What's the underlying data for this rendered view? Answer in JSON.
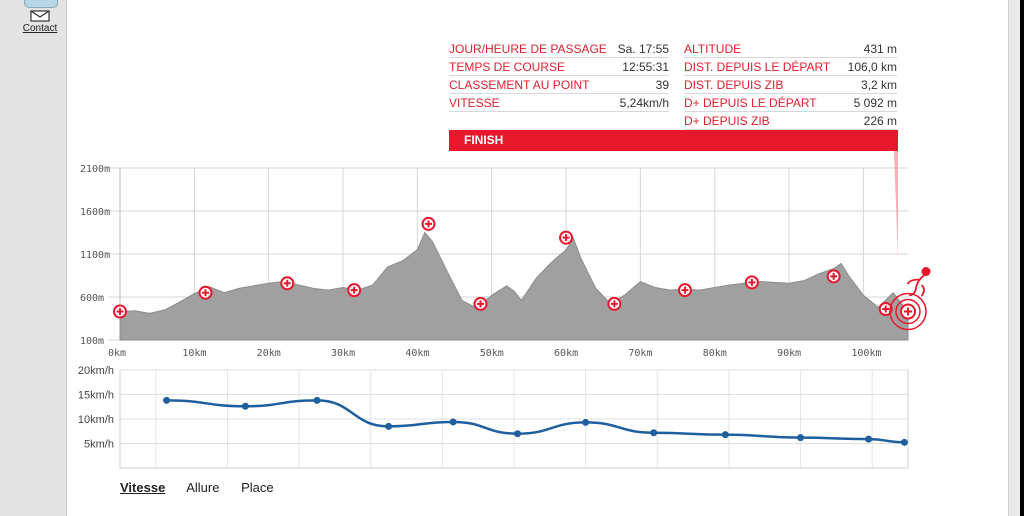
{
  "sidebar": {
    "contact_label": "Contact"
  },
  "info": {
    "left": [
      {
        "label": "JOUR/HEURE DE PASSAGE",
        "value": "Sa. 17:55"
      },
      {
        "label": "TEMPS DE COURSE",
        "value": "12:55:31"
      },
      {
        "label": "CLASSEMENT AU POINT",
        "value": "39"
      },
      {
        "label": "VITESSE",
        "value": "5,24km/h"
      }
    ],
    "right": [
      {
        "label": "ALTITUDE",
        "value": "431 m"
      },
      {
        "label": "DIST. DEPUIS LE DÉPART",
        "value": "106,0 km"
      },
      {
        "label": "DIST. DEPUIS ZIB",
        "value": "3,2 km"
      },
      {
        "label": "D+ DEPUIS LE DÉPART",
        "value": "5 092 m"
      },
      {
        "label": "D+ DEPUIS ZIB",
        "value": "226 m"
      }
    ]
  },
  "finish_label": "FINISH",
  "tabs": [
    "Vitesse",
    "Allure",
    "Place"
  ],
  "active_tab": "Vitesse",
  "colors": {
    "accent": "#e8182c",
    "profile": "#a0a0a0",
    "speed_line": "#1f5fa0"
  },
  "chart_data": [
    {
      "type": "area",
      "title": "",
      "xlabel": "",
      "ylabel": "",
      "x_unit": "km",
      "y_unit": "m",
      "xlim": [
        0,
        106
      ],
      "ylim": [
        100,
        2100
      ],
      "x_ticks": [
        "0km",
        "10km",
        "20km",
        "30km",
        "40km",
        "50km",
        "60km",
        "70km",
        "80km",
        "90km",
        "100km"
      ],
      "y_ticks": [
        "2100m",
        "1600m",
        "1100m",
        "600m",
        "100m"
      ],
      "grid": true,
      "profile": {
        "x": [
          0,
          2,
          4,
          6,
          8,
          10,
          12,
          14,
          16,
          18,
          20,
          22,
          24,
          26,
          28,
          30,
          32,
          34,
          36,
          38,
          40,
          41,
          42,
          44,
          46,
          48,
          50,
          52,
          53,
          54,
          56,
          58,
          60,
          61,
          62,
          64,
          66,
          68,
          70,
          72,
          74,
          76,
          78,
          80,
          82,
          84,
          86,
          88,
          90,
          92,
          94,
          96,
          97,
          98,
          100,
          102,
          104,
          106
        ],
        "y": [
          430,
          440,
          410,
          450,
          540,
          640,
          720,
          650,
          700,
          730,
          760,
          780,
          740,
          700,
          680,
          710,
          680,
          740,
          950,
          1020,
          1150,
          1350,
          1250,
          900,
          560,
          470,
          620,
          730,
          670,
          560,
          820,
          1000,
          1150,
          1280,
          1050,
          700,
          520,
          630,
          780,
          710,
          680,
          690,
          680,
          710,
          740,
          760,
          780,
          770,
          760,
          790,
          870,
          930,
          990,
          850,
          620,
          480,
          650,
          431
        ]
      },
      "aid_stations": {
        "x": [
          0,
          11.5,
          22.5,
          31.5,
          41.5,
          48.5,
          60,
          66.5,
          76,
          85,
          96,
          103
        ],
        "y": [
          431,
          650,
          760,
          680,
          1450,
          520,
          1290,
          520,
          680,
          770,
          840,
          460
        ]
      },
      "current_position": {
        "x": 106,
        "y": 431
      }
    },
    {
      "type": "line",
      "title": "",
      "xlabel": "",
      "ylabel": "",
      "y_unit": "km/h",
      "ylim": [
        0,
        20
      ],
      "y_ticks": [
        "20km/h",
        "15km/h",
        "10km/h",
        "5km/h"
      ],
      "grid": true,
      "series": [
        {
          "x": [
            6.5,
            17.5,
            27.5,
            37.5,
            46.5,
            55.5,
            65,
            74.5,
            84.5,
            95,
            104.5,
            109.5
          ],
          "values": [
            13.8,
            12.6,
            13.8,
            8.5,
            9.4,
            7.0,
            9.3,
            7.2,
            6.8,
            6.2,
            5.9,
            5.24
          ]
        }
      ]
    }
  ]
}
